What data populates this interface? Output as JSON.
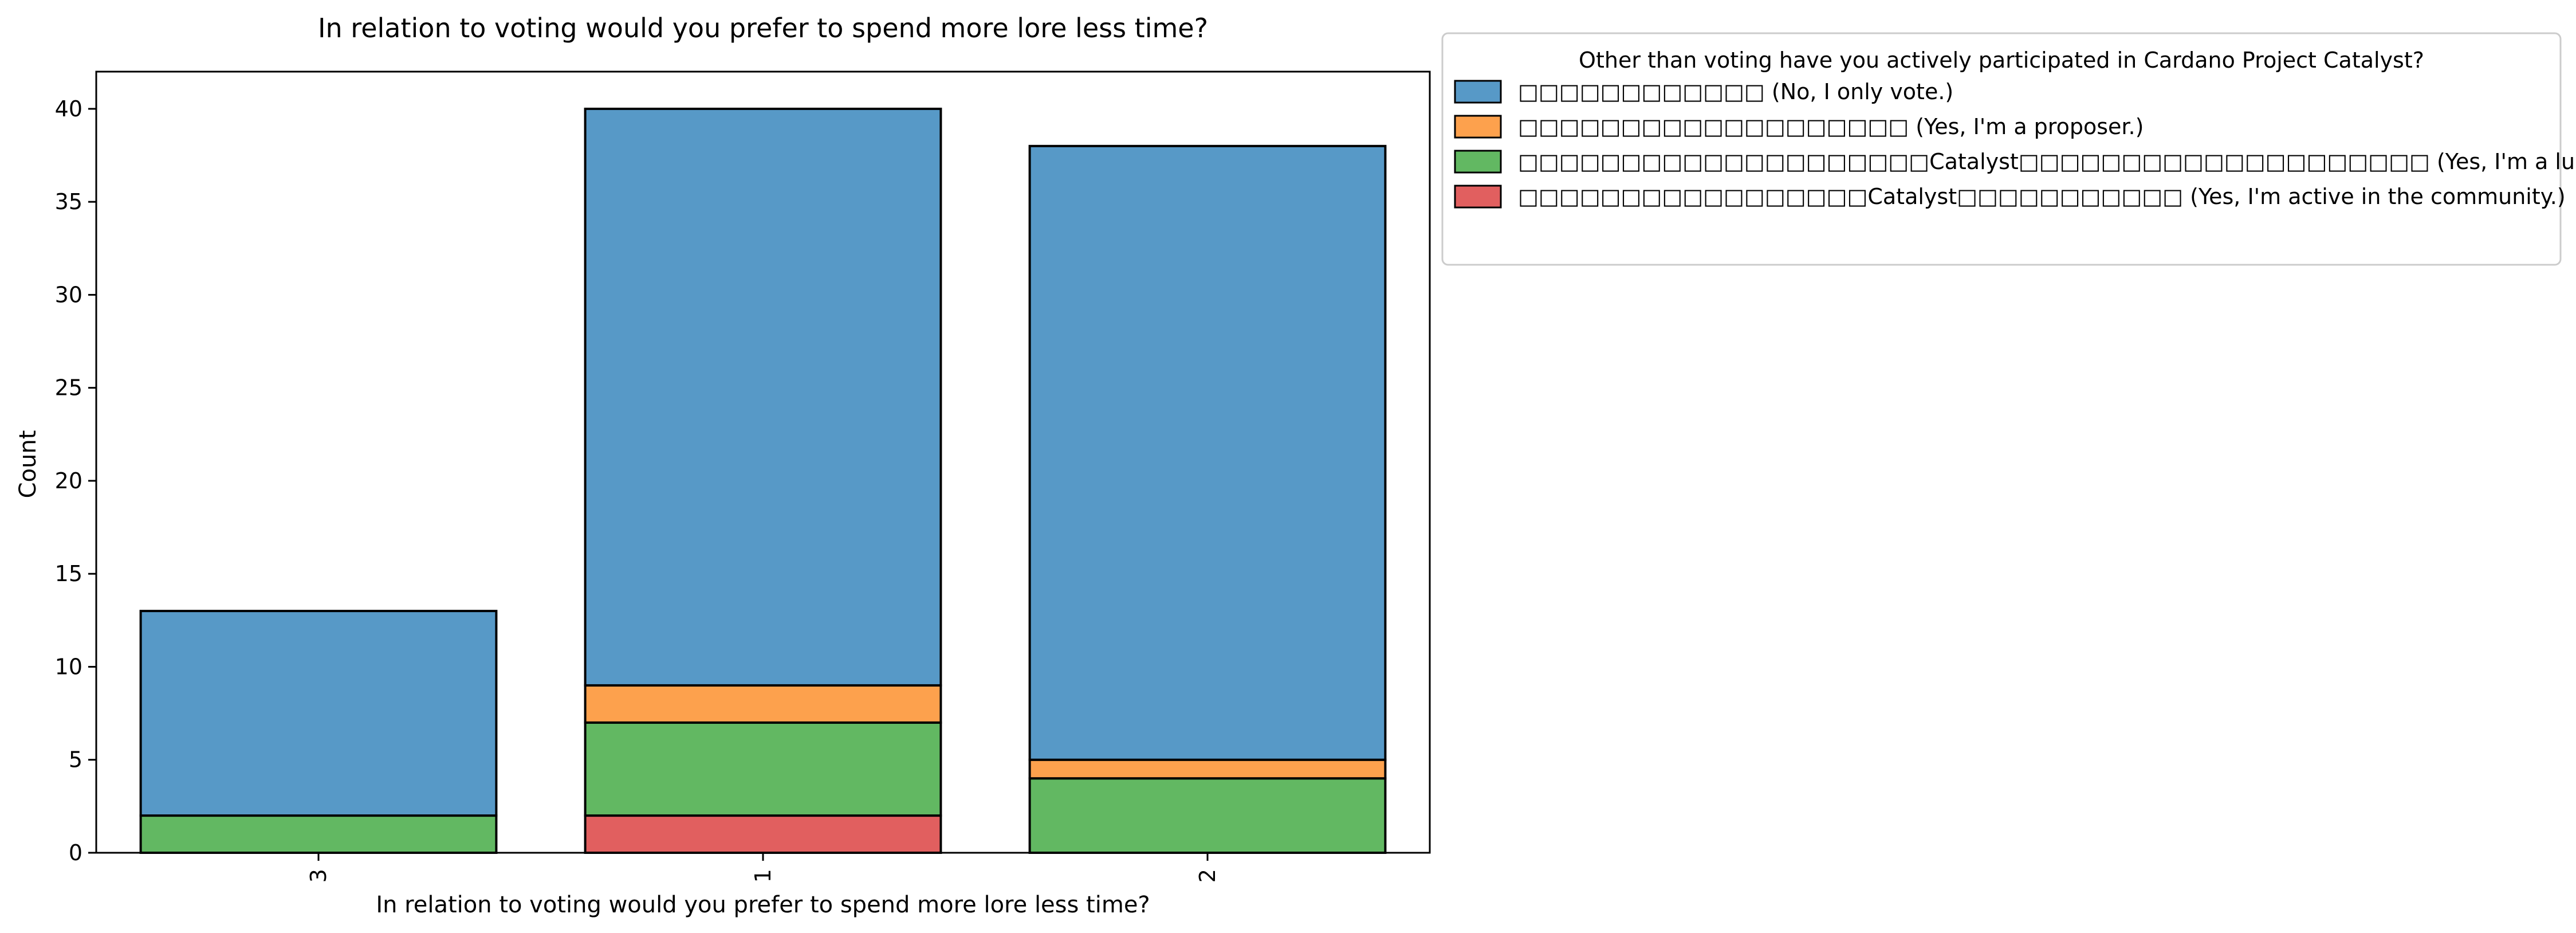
{
  "chart_data": {
    "type": "bar",
    "stacked": true,
    "title": "In relation to voting would you prefer to spend more lore less time?",
    "xlabel": "In relation to voting would you prefer to spend more lore less time?",
    "ylabel": "Count",
    "ylim": [
      0,
      42
    ],
    "yticks": [
      0,
      5,
      10,
      15,
      20,
      25,
      30,
      35,
      40
    ],
    "categories": [
      "3",
      "1",
      "2"
    ],
    "legend": {
      "title": "Other than voting have you actively participated in Cardano Project Catalyst?",
      "placement": "outside-top-right"
    },
    "series": [
      {
        "name": "□□□□□□□□□□□□ (Yes, I'm active in the community.)",
        "display": "□□□□□□□□□□□□□□□□□Catalyst□□□□□□□□□□□ (Yes, I'm active in the community.)",
        "color": "#e15f5f",
        "values": [
          0,
          2,
          0
        ]
      },
      {
        "name": "lurker",
        "display": "□□□□□□□□□□□□□□□□□□□□Catalyst□□□□□□□□□□□□□□□□□□□□ (Yes, I'm a lurker in the community)",
        "color": "#62b862",
        "values": [
          2,
          5,
          4
        ]
      },
      {
        "name": "proposer",
        "display": "□□□□□□□□□□□□□□□□□□□ (Yes, I'm a proposer.)",
        "color": "#fda14d",
        "values": [
          0,
          2,
          1
        ]
      },
      {
        "name": "vote-only",
        "display": "□□□□□□□□□□□□ (No, I only vote.)",
        "color": "#5799c7",
        "values": [
          11,
          31,
          33
        ]
      }
    ],
    "legend_order": [
      3,
      2,
      1,
      0
    ]
  }
}
